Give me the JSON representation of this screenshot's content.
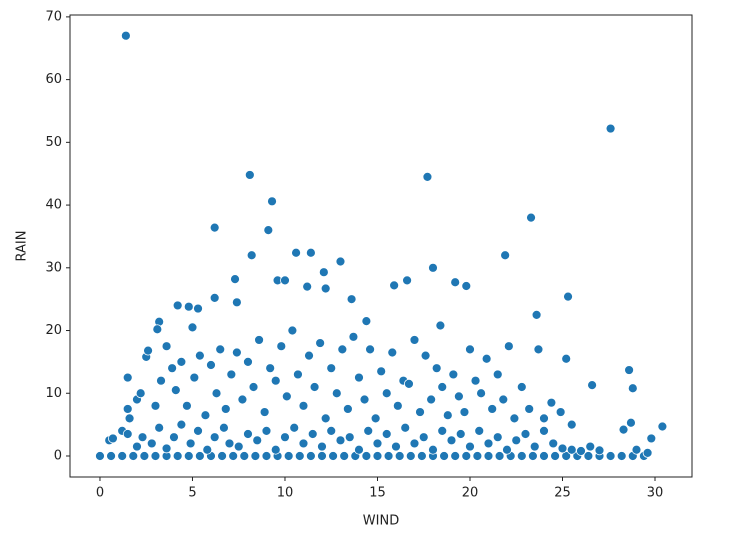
{
  "chart_data": {
    "type": "scatter",
    "x_label": "WIND",
    "y_label": "RAIN",
    "color": "#1f77b4",
    "xlim": [
      -1.62,
      32.0
    ],
    "ylim": [
      -3.35,
      70.3
    ],
    "xticks": [
      0,
      5,
      10,
      15,
      20,
      25,
      30
    ],
    "yticks": [
      0,
      10,
      20,
      30,
      40,
      50,
      60,
      70
    ],
    "x": [
      0,
      0.6,
      1.2,
      1.8,
      2.4,
      3,
      3.6,
      4.2,
      4.8,
      5.4,
      6,
      6.6,
      7.2,
      7.8,
      8.4,
      9,
      9.6,
      10.2,
      10.8,
      11.4,
      12,
      12.6,
      13.2,
      13.8,
      14.4,
      15,
      15.6,
      16.2,
      16.8,
      17.4,
      18,
      18.6,
      19.2,
      19.8,
      20.4,
      21,
      21.6,
      22.2,
      22.8,
      23.4,
      24,
      24.6,
      25.2,
      25.8,
      26.4,
      27,
      27.6,
      28.2,
      28.8,
      29.4,
      0.5,
      0.7,
      1.2,
      1.5,
      2,
      2.3,
      2.8,
      3.2,
      3.6,
      4,
      4.4,
      4.9,
      5.3,
      5.8,
      6.2,
      6.7,
      7,
      7.5,
      8,
      8.5,
      9,
      9.5,
      10,
      10.5,
      11,
      11.5,
      12,
      12.5,
      13,
      13.5,
      14,
      14.5,
      15,
      15.5,
      16,
      16.5,
      17,
      17.5,
      18,
      18.5,
      19,
      19.5,
      20,
      20.5,
      21,
      21.5,
      22,
      22.5,
      23,
      23.5,
      24,
      24.5,
      25,
      25.5,
      26,
      26.5,
      27,
      28.3,
      28.7,
      29,
      29.6,
      29.8,
      30.4,
      1.5,
      1.6,
      1.5,
      2,
      2.2,
      2.5,
      2.6,
      3,
      3.3,
      3.6,
      3.9,
      4.1,
      4.4,
      4.7,
      5.1,
      5.4,
      5.7,
      6,
      6.3,
      6.5,
      6.8,
      7.1,
      7.4,
      7.7,
      8,
      8.3,
      8.6,
      8.9,
      9.2,
      9.5,
      9.8,
      10.1,
      10.4,
      10.7,
      11,
      11.3,
      11.6,
      11.9,
      12.2,
      12.5,
      12.8,
      13.1,
      13.4,
      13.7,
      14,
      14.3,
      14.6,
      14.9,
      15.2,
      15.5,
      15.8,
      16.1,
      16.4,
      16.7,
      17,
      17.3,
      17.6,
      17.9,
      18.2,
      18.5,
      18.8,
      19.1,
      19.4,
      19.7,
      20,
      20.3,
      20.6,
      20.9,
      21.2,
      21.5,
      21.8,
      22.1,
      22.4,
      22.8,
      23.2,
      23.7,
      24,
      24.4,
      24.9,
      25.2,
      25.5,
      26.6,
      28.6,
      28.8,
      1.4,
      27.6,
      8.1,
      17.7,
      9.3,
      23.3,
      6.2,
      9.1,
      10.6,
      11.4,
      8.2,
      21.9,
      13,
      18,
      12.1,
      9.6,
      10,
      7.3,
      16.6,
      15.9,
      19.2,
      19.8,
      12.2,
      11.2,
      6.2,
      25.3,
      4.2,
      13.6,
      5.3,
      4.8,
      23.6,
      18.4,
      14.4,
      3.2,
      3.1,
      5,
      7.4
    ],
    "values": [
      0,
      0,
      0,
      0,
      0,
      0,
      0,
      0,
      0,
      0,
      0,
      0,
      0,
      0,
      0,
      0,
      0,
      0,
      0,
      0,
      0,
      0,
      0,
      0,
      0,
      0,
      0,
      0,
      0,
      0,
      0,
      0,
      0,
      0,
      0,
      0,
      0,
      0,
      0,
      0,
      0,
      0,
      0,
      0,
      0,
      0,
      0,
      0,
      0,
      0,
      2.5,
      2.8,
      4,
      3.5,
      1.5,
      3,
      2,
      4.5,
      1.2,
      3,
      5,
      2,
      4,
      1,
      3,
      4.5,
      2,
      1.5,
      3.5,
      2.5,
      4,
      1,
      3,
      4.5,
      2,
      3.5,
      1.5,
      4,
      2.5,
      3,
      1,
      4,
      2,
      3.5,
      1.5,
      4.5,
      2,
      3,
      1,
      4,
      2.5,
      3.5,
      1.5,
      4,
      2,
      3,
      1,
      2.5,
      3.5,
      1.5,
      4,
      2,
      1.2,
      1,
      0.8,
      1.5,
      0.9,
      4.2,
      5.3,
      1,
      0.5,
      2.8,
      4.7,
      7.5,
      6,
      12.5,
      9,
      10,
      15.8,
      16.8,
      8,
      12,
      17.5,
      14,
      10.5,
      15,
      8,
      12.5,
      16,
      6.5,
      14.5,
      10,
      17,
      7.5,
      13,
      16.5,
      9,
      15,
      11,
      18.5,
      7,
      14,
      12,
      17.5,
      9.5,
      20,
      13,
      8,
      16,
      11,
      18,
      6,
      14,
      10,
      17,
      7.5,
      19,
      12.5,
      9,
      17,
      6,
      13.5,
      10,
      16.5,
      8,
      12,
      11.5,
      18.5,
      7,
      16,
      9,
      14,
      11,
      6.5,
      13,
      9.5,
      7,
      17,
      12,
      10,
      15.5,
      7.5,
      13,
      9,
      17.5,
      6,
      11,
      7.5,
      17,
      6,
      8.5,
      7,
      15.5,
      5,
      11.3,
      13.7,
      10.8,
      67,
      52.2,
      44.8,
      44.5,
      40.6,
      38,
      36.4,
      36,
      32.4,
      32.4,
      32,
      32,
      31,
      30,
      29.3,
      28,
      28,
      28.2,
      28,
      27.2,
      27.7,
      27.1,
      26.7,
      27,
      25.2,
      25.4,
      24,
      25,
      23.5,
      23.8,
      22.5,
      20.8,
      21.5,
      21.4,
      20.2,
      20.5,
      24.5
    ]
  }
}
